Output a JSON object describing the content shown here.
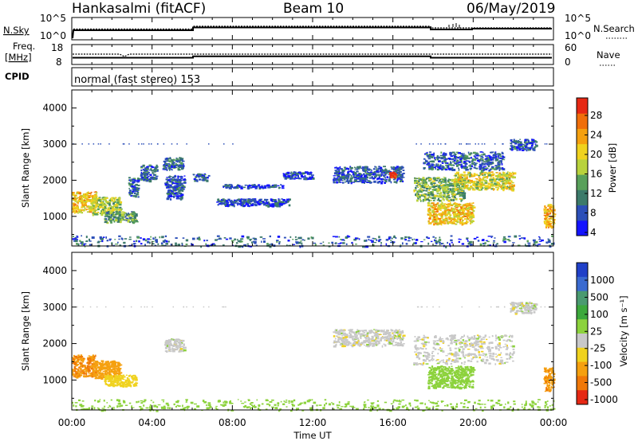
{
  "header": {
    "station": "Hankasalmi (fitACF)",
    "beam": "Beam 10",
    "date": "06/May/2019"
  },
  "sky_panel": {
    "left_label": "N.Sky",
    "right_label": "N.Search",
    "left_ticks": [
      "10^5",
      "10^0"
    ],
    "right_ticks": [
      "10^5",
      "10^0"
    ]
  },
  "freq_panel": {
    "left_label_1": "Freq.",
    "left_label_2": "[MHz]",
    "right_label": "Nave",
    "left_ticks": [
      "18",
      "8"
    ],
    "right_ticks": [
      "60",
      "0"
    ]
  },
  "cpid_panel": {
    "label": "CPID",
    "mode_text": "normal (fast stereo) 153"
  },
  "axes": {
    "ylabel": "Slant Range [km]",
    "xlabel": "Time UT",
    "yticks": [
      "4000",
      "3000",
      "2000",
      "1000"
    ],
    "xticks": [
      "00:00",
      "04:00",
      "08:00",
      "12:00",
      "16:00",
      "20:00",
      "00:00"
    ]
  },
  "chart_data": [
    {
      "type": "heatmap",
      "title": "Power",
      "colorbar_label": "Power [dB]",
      "colorbar_ticks": [
        "28",
        "24",
        "20",
        "16",
        "12",
        "8",
        "4"
      ],
      "colorbar_colors": [
        "#1414ff",
        "#2c4fb8",
        "#3c7a6a",
        "#58a05a",
        "#b8d23c",
        "#f0d21e",
        "#f5a00f",
        "#f06e0a",
        "#e62814"
      ],
      "x_range_hours": [
        0,
        24
      ],
      "y_range_km": [
        180,
        4500
      ],
      "echo_regions": [
        {
          "t0": 0.0,
          "t1": 1.2,
          "r0": 1100,
          "r1": 1700,
          "power_db": 18
        },
        {
          "t0": 1.0,
          "t1": 2.4,
          "r0": 1050,
          "r1": 1550,
          "power_db": 14
        },
        {
          "t0": 1.6,
          "t1": 3.2,
          "r0": 850,
          "r1": 1150,
          "power_db": 10
        },
        {
          "t0": 2.8,
          "t1": 3.3,
          "r0": 1550,
          "r1": 2100,
          "power_db": 6
        },
        {
          "t0": 3.4,
          "t1": 4.2,
          "r0": 2000,
          "r1": 2450,
          "power_db": 6
        },
        {
          "t0": 4.5,
          "t1": 5.5,
          "r0": 2300,
          "r1": 2650,
          "power_db": 6
        },
        {
          "t0": 4.6,
          "t1": 5.6,
          "r0": 1800,
          "r1": 2150,
          "power_db": 5
        },
        {
          "t0": 4.7,
          "t1": 5.5,
          "r0": 1500,
          "r1": 1850,
          "power_db": 5
        },
        {
          "t0": 6.0,
          "t1": 6.8,
          "r0": 2000,
          "r1": 2200,
          "power_db": 5
        },
        {
          "t0": 7.5,
          "t1": 10.5,
          "r0": 1800,
          "r1": 1900,
          "power_db": 4
        },
        {
          "t0": 7.2,
          "t1": 10.8,
          "r0": 1300,
          "r1": 1500,
          "power_db": 4
        },
        {
          "t0": 10.5,
          "t1": 12.0,
          "r0": 2050,
          "r1": 2250,
          "power_db": 4
        },
        {
          "t0": 13.0,
          "t1": 16.5,
          "r0": 1950,
          "r1": 2400,
          "power_db": 5
        },
        {
          "t0": 15.8,
          "t1": 16.1,
          "r0": 2100,
          "r1": 2250,
          "power_db": 28
        },
        {
          "t0": 17.0,
          "t1": 19.5,
          "r0": 1450,
          "r1": 2100,
          "power_db": 12
        },
        {
          "t0": 19.0,
          "t1": 22.0,
          "r0": 1750,
          "r1": 2250,
          "power_db": 16
        },
        {
          "t0": 17.7,
          "t1": 20.0,
          "r0": 800,
          "r1": 1400,
          "power_db": 18
        },
        {
          "t0": 17.5,
          "t1": 21.5,
          "r0": 2300,
          "r1": 2800,
          "power_db": 6
        },
        {
          "t0": 21.8,
          "t1": 23.1,
          "r0": 2850,
          "r1": 3150,
          "power_db": 6
        },
        {
          "t0": 23.5,
          "t1": 24.0,
          "r0": 700,
          "r1": 1350,
          "power_db": 20
        },
        {
          "t0": 0.0,
          "t1": 24.0,
          "r0": 180,
          "r1": 480,
          "power_db": 6
        }
      ]
    },
    {
      "type": "heatmap",
      "title": "Velocity",
      "colorbar_label": "Velocity [m s⁻¹]",
      "colorbar_ticks": [
        "1000",
        "500",
        "100",
        "25",
        "-25",
        "-100",
        "-500",
        "-1000"
      ],
      "colorbar_colors": [
        "#2040c8",
        "#3a6ad0",
        "#4a9a70",
        "#3ca83c",
        "#8cd23c",
        "#c8c8c8",
        "#f0d21e",
        "#f5a00f",
        "#f07808",
        "#e62814"
      ],
      "x_range_hours": [
        0,
        24
      ],
      "y_range_km": [
        180,
        4500
      ],
      "echo_regions": [
        {
          "t0": 0.0,
          "t1": 1.2,
          "r0": 1100,
          "r1": 1700,
          "velocity_ms": -500
        },
        {
          "t0": 1.0,
          "t1": 2.4,
          "r0": 1050,
          "r1": 1550,
          "velocity_ms": -300
        },
        {
          "t0": 1.6,
          "t1": 3.2,
          "r0": 850,
          "r1": 1150,
          "velocity_ms": -60
        },
        {
          "t0": 4.6,
          "t1": 5.6,
          "r0": 1800,
          "r1": 2150,
          "velocity_ms": 0
        },
        {
          "t0": 13.0,
          "t1": 16.5,
          "r0": 1950,
          "r1": 2400,
          "velocity_ms": 0
        },
        {
          "t0": 17.0,
          "t1": 22.0,
          "r0": 1450,
          "r1": 2250,
          "velocity_ms": 0
        },
        {
          "t0": 17.7,
          "t1": 20.0,
          "r0": 800,
          "r1": 1400,
          "velocity_ms": 60
        },
        {
          "t0": 21.8,
          "t1": 23.1,
          "r0": 2850,
          "r1": 3150,
          "velocity_ms": 0
        },
        {
          "t0": 23.5,
          "t1": 24.0,
          "r0": 700,
          "r1": 1350,
          "velocity_ms": -400
        },
        {
          "t0": 0.0,
          "t1": 24.0,
          "r0": 180,
          "r1": 480,
          "velocity_ms": 60
        }
      ]
    }
  ]
}
